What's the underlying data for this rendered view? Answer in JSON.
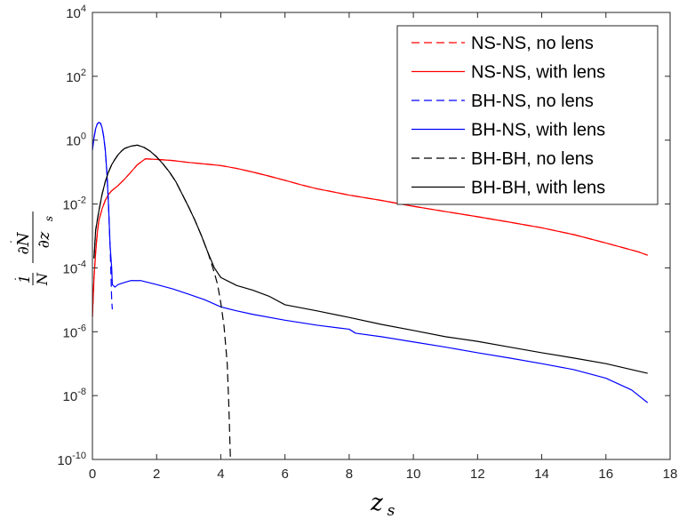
{
  "chart_data": {
    "type": "line",
    "xlabel": "z_s",
    "ylabel": "1/N ∂N/∂z_s",
    "xlim": [
      0,
      18
    ],
    "ylim": [
      1e-10,
      10000.0
    ],
    "yscale": "log",
    "grid": false,
    "legend_position": "top-right",
    "x_ticks": [
      "0",
      "2",
      "4",
      "6",
      "8",
      "10",
      "12",
      "14",
      "16",
      "18"
    ],
    "y_ticks": [
      {
        "base": "10",
        "exp": "-10"
      },
      {
        "base": "10",
        "exp": "-8"
      },
      {
        "base": "10",
        "exp": "-6"
      },
      {
        "base": "10",
        "exp": "-4"
      },
      {
        "base": "10",
        "exp": "-2"
      },
      {
        "base": "10",
        "exp": "0"
      },
      {
        "base": "10",
        "exp": "2"
      },
      {
        "base": "10",
        "exp": "4"
      }
    ],
    "series": [
      {
        "name": "NS-NS, no lens",
        "color": "#ff0000",
        "dash": "dashed",
        "points": [
          [
            0,
            3e-06
          ],
          [
            0.05,
            5e-05
          ],
          [
            0.1,
            0.0003
          ],
          [
            0.15,
            0.0012
          ],
          [
            0.2,
            0.003
          ],
          [
            0.3,
            0.007
          ],
          [
            0.4,
            0.013
          ],
          [
            0.5,
            0.02
          ],
          [
            0.6,
            0.026
          ],
          [
            0.8,
            0.038
          ],
          [
            1.0,
            0.06
          ],
          [
            1.2,
            0.1
          ],
          [
            1.4,
            0.17
          ],
          [
            1.6,
            0.24
          ],
          [
            1.65,
            0.26
          ],
          [
            2.0,
            0.25
          ],
          [
            2.5,
            0.23
          ],
          [
            3.0,
            0.2
          ],
          [
            3.5,
            0.18
          ],
          [
            4.0,
            0.16
          ],
          [
            4.5,
            0.13
          ],
          [
            5.0,
            0.1
          ],
          [
            5.5,
            0.075
          ],
          [
            6.0,
            0.055
          ],
          [
            6.5,
            0.04
          ],
          [
            7.0,
            0.03
          ],
          [
            7.5,
            0.024
          ],
          [
            8.0,
            0.019
          ],
          [
            9.0,
            0.013
          ],
          [
            10.0,
            0.0085
          ],
          [
            11.0,
            0.0058
          ],
          [
            12.0,
            0.004
          ],
          [
            13.0,
            0.0027
          ],
          [
            14.0,
            0.0018
          ],
          [
            15.0,
            0.0011
          ],
          [
            16.0,
            0.0006
          ],
          [
            17.0,
            0.00032
          ],
          [
            17.3,
            0.00025
          ]
        ]
      },
      {
        "name": "NS-NS, with lens",
        "color": "#ff0000",
        "dash": "solid",
        "points": [
          [
            0,
            3e-06
          ],
          [
            0.05,
            5e-05
          ],
          [
            0.1,
            0.0003
          ],
          [
            0.15,
            0.0012
          ],
          [
            0.2,
            0.003
          ],
          [
            0.3,
            0.007
          ],
          [
            0.4,
            0.013
          ],
          [
            0.5,
            0.02
          ],
          [
            0.6,
            0.026
          ],
          [
            0.8,
            0.038
          ],
          [
            1.0,
            0.06
          ],
          [
            1.2,
            0.1
          ],
          [
            1.4,
            0.17
          ],
          [
            1.6,
            0.24
          ],
          [
            1.65,
            0.26
          ],
          [
            2.0,
            0.25
          ],
          [
            2.5,
            0.23
          ],
          [
            3.0,
            0.2
          ],
          [
            3.5,
            0.18
          ],
          [
            4.0,
            0.16
          ],
          [
            4.5,
            0.13
          ],
          [
            5.0,
            0.1
          ],
          [
            5.5,
            0.075
          ],
          [
            6.0,
            0.055
          ],
          [
            6.5,
            0.04
          ],
          [
            7.0,
            0.03
          ],
          [
            7.5,
            0.024
          ],
          [
            8.0,
            0.019
          ],
          [
            9.0,
            0.013
          ],
          [
            10.0,
            0.0085
          ],
          [
            11.0,
            0.0058
          ],
          [
            12.0,
            0.004
          ],
          [
            13.0,
            0.0027
          ],
          [
            14.0,
            0.0018
          ],
          [
            15.0,
            0.0011
          ],
          [
            16.0,
            0.0006
          ],
          [
            17.0,
            0.00032
          ],
          [
            17.3,
            0.00025
          ]
        ]
      },
      {
        "name": "BH-NS, no lens",
        "color": "#0000ff",
        "dash": "dashed",
        "points": [
          [
            0,
            0.5
          ],
          [
            0.05,
            1.2
          ],
          [
            0.1,
            2.3
          ],
          [
            0.15,
            3.2
          ],
          [
            0.2,
            3.6
          ],
          [
            0.25,
            3.4
          ],
          [
            0.3,
            2.5
          ],
          [
            0.35,
            1.3
          ],
          [
            0.4,
            0.5
          ],
          [
            0.45,
            0.1
          ],
          [
            0.5,
            0.01
          ],
          [
            0.55,
            0.0005
          ],
          [
            0.58,
            5e-05
          ],
          [
            0.6,
            1e-05
          ],
          [
            0.62,
            5e-06
          ]
        ]
      },
      {
        "name": "BH-NS, with lens",
        "color": "#0000ff",
        "dash": "solid",
        "points": [
          [
            0,
            0.5
          ],
          [
            0.05,
            1.2
          ],
          [
            0.1,
            2.3
          ],
          [
            0.15,
            3.2
          ],
          [
            0.2,
            3.6
          ],
          [
            0.25,
            3.4
          ],
          [
            0.3,
            2.5
          ],
          [
            0.35,
            1.3
          ],
          [
            0.4,
            0.5
          ],
          [
            0.45,
            0.1
          ],
          [
            0.5,
            0.01
          ],
          [
            0.55,
            0.0005
          ],
          [
            0.6,
            0.0001
          ],
          [
            0.62,
            3e-05
          ],
          [
            0.7,
            2.5e-05
          ],
          [
            0.8,
            3e-05
          ],
          [
            1.0,
            3.5e-05
          ],
          [
            1.2,
            4e-05
          ],
          [
            1.5,
            4e-05
          ],
          [
            2.0,
            3e-05
          ],
          [
            2.5,
            2.2e-05
          ],
          [
            3.0,
            1.5e-05
          ],
          [
            3.5,
            1e-05
          ],
          [
            4.0,
            6e-06
          ],
          [
            4.5,
            4.5e-06
          ],
          [
            5.0,
            3.5e-06
          ],
          [
            6.0,
            2.3e-06
          ],
          [
            7.0,
            1.6e-06
          ],
          [
            8.0,
            1.2e-06
          ],
          [
            8.2,
            9e-07
          ],
          [
            9.0,
            7e-07
          ],
          [
            10.0,
            4.8e-07
          ],
          [
            11.0,
            3.3e-07
          ],
          [
            12.0,
            2.2e-07
          ],
          [
            13.0,
            1.5e-07
          ],
          [
            14.0,
            1e-07
          ],
          [
            15.0,
            6.5e-08
          ],
          [
            16.0,
            3.5e-08
          ],
          [
            16.8,
            1.5e-08
          ],
          [
            17.3,
            6e-09
          ]
        ]
      },
      {
        "name": "BH-BH, no lens",
        "color": "#000000",
        "dash": "dashed",
        "points": [
          [
            0.05,
            0.0002
          ],
          [
            0.1,
            0.0015
          ],
          [
            0.2,
            0.006
          ],
          [
            0.3,
            0.02
          ],
          [
            0.4,
            0.05
          ],
          [
            0.5,
            0.1
          ],
          [
            0.6,
            0.17
          ],
          [
            0.7,
            0.25
          ],
          [
            0.8,
            0.35
          ],
          [
            0.9,
            0.45
          ],
          [
            1.0,
            0.55
          ],
          [
            1.2,
            0.65
          ],
          [
            1.4,
            0.7
          ],
          [
            1.6,
            0.6
          ],
          [
            1.8,
            0.45
          ],
          [
            2.0,
            0.3
          ],
          [
            2.2,
            0.18
          ],
          [
            2.4,
            0.1
          ],
          [
            2.6,
            0.05
          ],
          [
            2.8,
            0.02
          ],
          [
            3.0,
            0.008
          ],
          [
            3.2,
            0.003
          ],
          [
            3.4,
            0.001
          ],
          [
            3.6,
            0.0003
          ],
          [
            3.8,
            7e-05
          ],
          [
            3.9,
            3e-05
          ],
          [
            4.0,
            8e-06
          ],
          [
            4.1,
            1.5e-06
          ],
          [
            4.2,
            1e-07
          ],
          [
            4.25,
            5e-09
          ],
          [
            4.3,
            1e-10
          ]
        ]
      },
      {
        "name": "BH-BH, with lens",
        "color": "#000000",
        "dash": "solid",
        "points": [
          [
            0.05,
            0.0002
          ],
          [
            0.1,
            0.0015
          ],
          [
            0.2,
            0.006
          ],
          [
            0.3,
            0.02
          ],
          [
            0.4,
            0.05
          ],
          [
            0.5,
            0.1
          ],
          [
            0.6,
            0.17
          ],
          [
            0.7,
            0.25
          ],
          [
            0.8,
            0.35
          ],
          [
            0.9,
            0.45
          ],
          [
            1.0,
            0.55
          ],
          [
            1.2,
            0.65
          ],
          [
            1.4,
            0.7
          ],
          [
            1.6,
            0.6
          ],
          [
            1.8,
            0.45
          ],
          [
            2.0,
            0.3
          ],
          [
            2.2,
            0.18
          ],
          [
            2.4,
            0.1
          ],
          [
            2.6,
            0.05
          ],
          [
            2.8,
            0.02
          ],
          [
            3.0,
            0.008
          ],
          [
            3.2,
            0.003
          ],
          [
            3.4,
            0.001
          ],
          [
            3.6,
            0.0003
          ],
          [
            3.8,
            0.0001
          ],
          [
            4.0,
            5e-05
          ],
          [
            4.5,
            2.8e-05
          ],
          [
            5.0,
            2e-05
          ],
          [
            5.5,
            1.3e-05
          ],
          [
            6.0,
            7e-06
          ],
          [
            7.0,
            4.5e-06
          ],
          [
            8.0,
            2.8e-06
          ],
          [
            9.0,
            1.7e-06
          ],
          [
            10.0,
            1.1e-06
          ],
          [
            11.0,
            7e-07
          ],
          [
            12.0,
            5e-07
          ],
          [
            13.0,
            3.3e-07
          ],
          [
            14.0,
            2.2e-07
          ],
          [
            15.0,
            1.5e-07
          ],
          [
            16.0,
            1e-07
          ],
          [
            17.3,
            5e-08
          ]
        ]
      }
    ]
  }
}
